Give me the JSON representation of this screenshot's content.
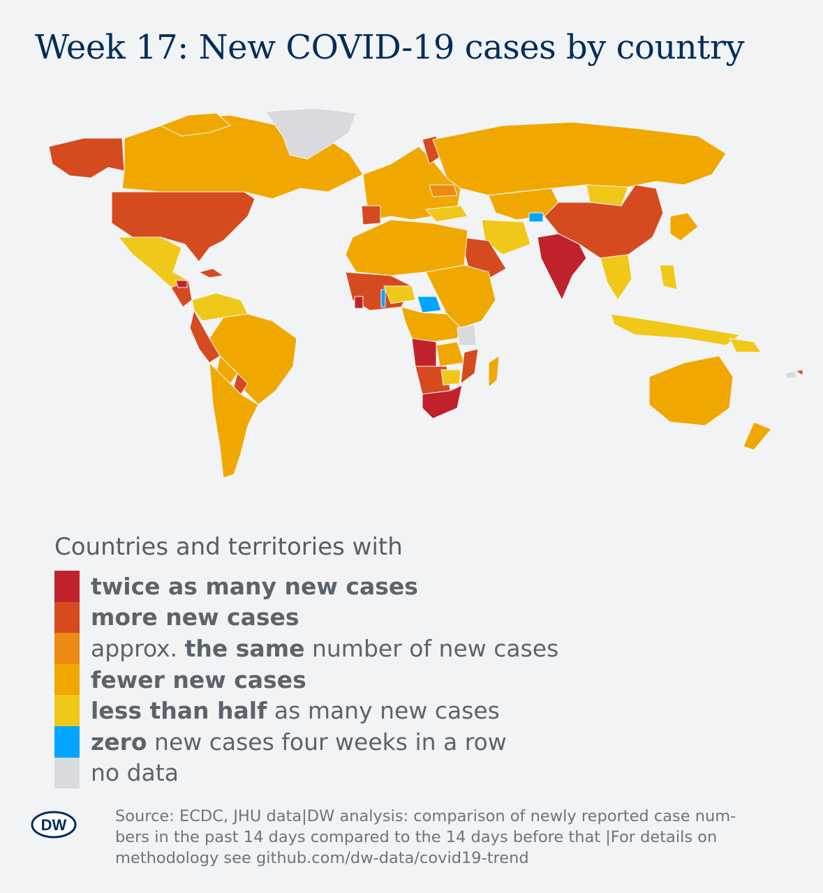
{
  "title": "Week 17: New COVID-19 cases by country",
  "legend": {
    "heading": "Countries and territories with",
    "items": [
      {
        "color": "#c0222c",
        "bold": "twice as many new cases",
        "rest": ""
      },
      {
        "color": "#d64a20",
        "bold": "more new cases",
        "rest": ""
      },
      {
        "pre": "approx. ",
        "color": "#ec8a12",
        "bold": "the same",
        "rest": " number of new cases"
      },
      {
        "color": "#f0a800",
        "bold": "fewer new cases",
        "rest": ""
      },
      {
        "color": "#f0c81a",
        "bold": "less than half",
        "rest": " as many new cases"
      },
      {
        "color": "#00a5ff",
        "bold": "zero",
        "rest": " new cases four weeks in a row"
      },
      {
        "color": "#d8dadd",
        "bold": "",
        "rest": "no data"
      }
    ]
  },
  "source_lines": [
    "Source: ECDC, JHU data|DW analysis: comparison of newly reported case num-",
    "bers in the past 14 days compared to the 14 days before that |For details on",
    "methodology see github.com/dw-data/covid19-trend"
  ],
  "logo_text": "DW",
  "colors": {
    "double": "#c0222c",
    "more": "#d64a20",
    "same": "#ec8a12",
    "fewer": "#f0a800",
    "half": "#f0c81a",
    "zero": "#00a5ff",
    "nodata": "#d8dadd"
  }
}
